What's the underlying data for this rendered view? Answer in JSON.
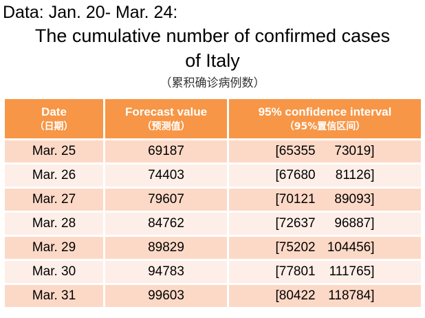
{
  "header": {
    "data_range": "Data: Jan. 20- Mar. 24:",
    "title_line1": "The cumulative number of confirmed cases",
    "title_line2": "of  Italy",
    "subtitle_zh": "（累积确诊病例数）"
  },
  "table": {
    "columns": [
      {
        "en": "Date",
        "zh": "（日期）"
      },
      {
        "en": "Forecast value",
        "zh": "（预测值）"
      },
      {
        "en": "95% confidence interval",
        "zh": "（95%置信区间）"
      }
    ],
    "rows": [
      {
        "date": "Mar. 25",
        "forecast": "69187",
        "ci_low": "[65355",
        "ci_high": "73019]"
      },
      {
        "date": "Mar. 26",
        "forecast": "74403",
        "ci_low": "[67680",
        "ci_high": "81126]"
      },
      {
        "date": "Mar. 27",
        "forecast": "79607",
        "ci_low": "[70121",
        "ci_high": "89093]"
      },
      {
        "date": "Mar. 28",
        "forecast": "84762",
        "ci_low": "[72637",
        "ci_high": "96887]"
      },
      {
        "date": "Mar. 29",
        "forecast": "89829",
        "ci_low": "[75202",
        "ci_high": "104456]"
      },
      {
        "date": "Mar. 30",
        "forecast": "94783",
        "ci_low": "[77801",
        "ci_high": "111765]"
      },
      {
        "date": "Mar. 31",
        "forecast": "99603",
        "ci_low": "[80422",
        "ci_high": "118784]"
      }
    ]
  },
  "colors": {
    "header_bg": "#f79646",
    "row_dark": "#fcd9c7",
    "row_light": "#fdeee8"
  }
}
